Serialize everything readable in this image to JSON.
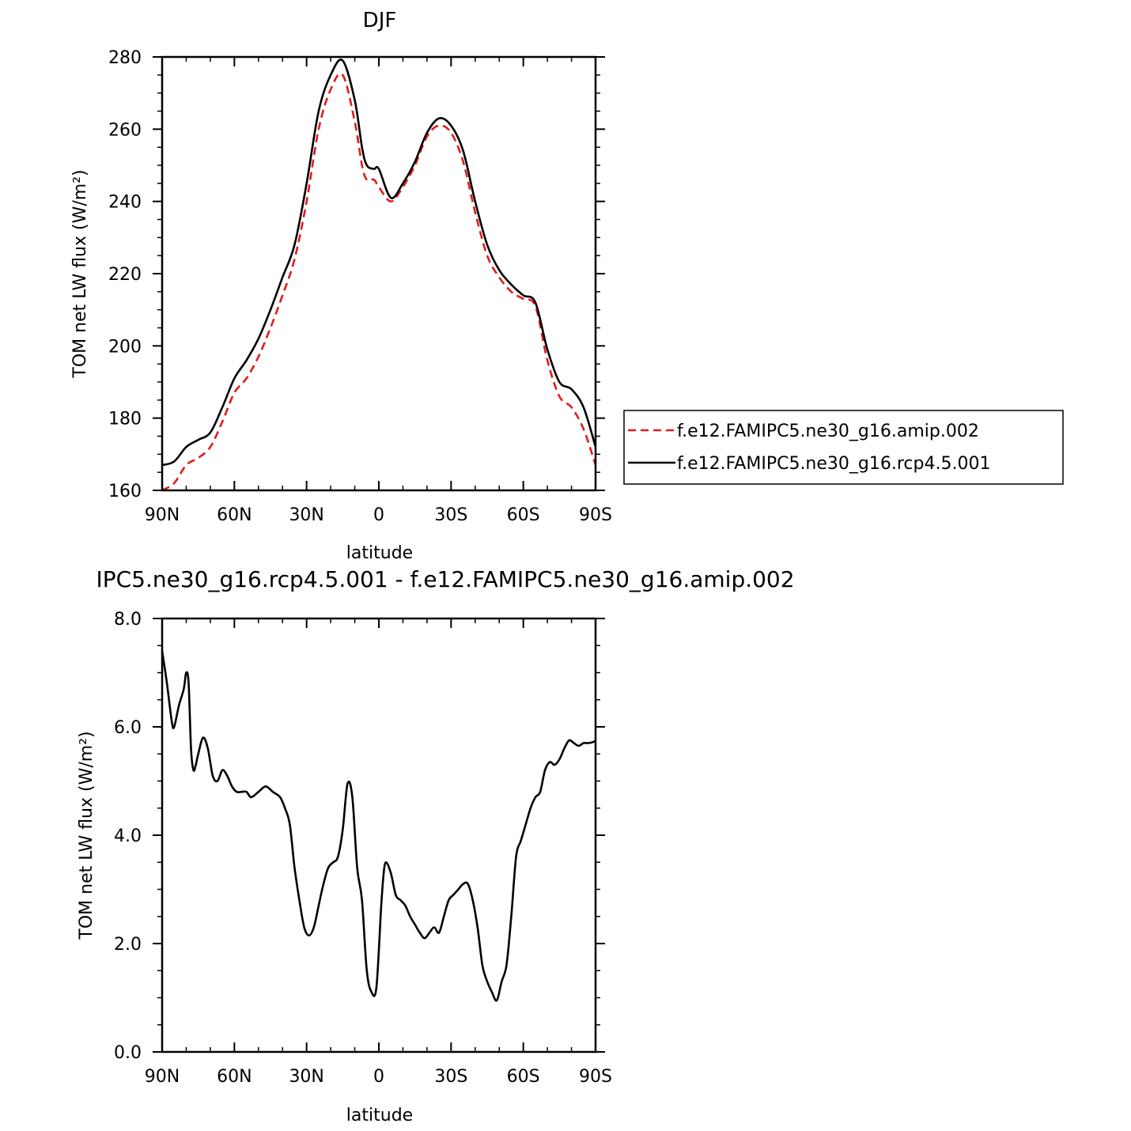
{
  "chart_data": [
    {
      "type": "line",
      "title": "DJF",
      "xlabel": "latitude",
      "ylabel": "TOM net LW flux (W/m²)",
      "xlim": [
        90,
        -90
      ],
      "ylim": [
        160,
        280
      ],
      "x_ticks": [
        90,
        60,
        30,
        0,
        -30,
        -60,
        -90
      ],
      "x_tick_labels": [
        "90N",
        "60N",
        "30N",
        "0",
        "30S",
        "60S",
        "90S"
      ],
      "y_ticks": [
        160,
        180,
        200,
        220,
        240,
        260,
        280
      ],
      "y_tick_labels": [
        "160",
        "180",
        "200",
        "220",
        "240",
        "260",
        "280"
      ],
      "legend_position": "right",
      "series": [
        {
          "name": "f.e12.FAMIPC5.ne30_g16.amip.002",
          "color": "#e31a1c",
          "dash": "dashed",
          "x": [
            90,
            85,
            80,
            75,
            70,
            65,
            60,
            55,
            50,
            45,
            40,
            35,
            30,
            25,
            20,
            15,
            10,
            7,
            5,
            2,
            0,
            -5,
            -10,
            -15,
            -20,
            -25,
            -30,
            -35,
            -40,
            -45,
            -50,
            -55,
            -60,
            -65,
            -70,
            -75,
            -80,
            -85,
            -90
          ],
          "y": [
            160,
            162,
            167,
            169,
            172,
            179,
            187,
            191,
            197,
            205,
            214,
            224,
            240,
            260,
            271,
            275,
            262,
            250,
            246,
            246,
            244,
            240,
            244,
            250,
            258,
            261,
            259,
            251,
            237,
            225,
            219,
            215,
            213,
            211,
            196,
            186,
            183,
            177,
            167
          ]
        },
        {
          "name": "f.e12.FAMIPC5.ne30_g16.rcp4.5.001",
          "color": "#000000",
          "dash": "solid",
          "x": [
            90,
            85,
            80,
            75,
            70,
            65,
            60,
            55,
            50,
            45,
            40,
            35,
            30,
            25,
            20,
            15,
            10,
            7,
            5,
            2,
            0,
            -5,
            -10,
            -15,
            -20,
            -25,
            -30,
            -35,
            -40,
            -45,
            -50,
            -55,
            -60,
            -65,
            -70,
            -75,
            -80,
            -85,
            -90
          ],
          "y": [
            167,
            168,
            172,
            174,
            176,
            183,
            191,
            196,
            202,
            210,
            219,
            228,
            245,
            265,
            275,
            279,
            268,
            255,
            250,
            249,
            249,
            241,
            245,
            251,
            259,
            263,
            261,
            254,
            240,
            228,
            221,
            217,
            214,
            212,
            199,
            190,
            188,
            183,
            172
          ]
        }
      ]
    },
    {
      "type": "line",
      "title": "IPC5.ne30_g16.rcp4.5.001 - f.e12.FAMIPC5.ne30_g16.amip.002",
      "xlabel": "latitude",
      "ylabel": "TOM net LW flux (W/m²)",
      "xlim": [
        90,
        -90
      ],
      "ylim": [
        0,
        8
      ],
      "x_ticks": [
        90,
        60,
        30,
        0,
        -30,
        -60,
        -90
      ],
      "x_tick_labels": [
        "90N",
        "60N",
        "30N",
        "0",
        "30S",
        "60S",
        "90S"
      ],
      "y_ticks": [
        0,
        2,
        4,
        6,
        8
      ],
      "y_tick_labels": [
        "0.0",
        "2.0",
        "4.0",
        "6.0",
        "8.0"
      ],
      "series": [
        {
          "color": "#000000",
          "dash": "solid",
          "x": [
            90,
            88,
            86,
            85,
            83,
            81,
            80,
            79,
            78,
            77,
            76,
            75,
            73,
            71,
            69,
            67,
            65,
            63,
            61,
            59,
            57,
            55,
            53,
            50,
            47,
            44,
            41,
            39,
            37,
            35,
            33,
            31,
            29,
            27,
            25,
            23,
            21,
            19,
            17,
            15,
            13,
            11,
            9,
            7,
            5,
            3,
            1,
            -1,
            -2,
            -3,
            -5,
            -7,
            -9,
            -11,
            -13,
            -15,
            -17,
            -19,
            -21,
            -23,
            -25,
            -27,
            -29,
            -31,
            -33,
            -35,
            -37,
            -39,
            -41,
            -43,
            -45,
            -47,
            -49,
            -51,
            -53,
            -55,
            -57,
            -59,
            -61,
            -63,
            -65,
            -67,
            -69,
            -71,
            -73,
            -75,
            -77,
            -79,
            -81,
            -83,
            -85,
            -87,
            -89,
            -90
          ],
          "y": [
            7.4,
            6.8,
            6.1,
            6.0,
            6.4,
            6.7,
            7.0,
            6.8,
            5.6,
            5.2,
            5.3,
            5.5,
            5.8,
            5.6,
            5.1,
            5.0,
            5.2,
            5.1,
            4.9,
            4.8,
            4.8,
            4.8,
            4.7,
            4.8,
            4.9,
            4.8,
            4.7,
            4.5,
            4.2,
            3.4,
            2.8,
            2.3,
            2.15,
            2.3,
            2.7,
            3.1,
            3.4,
            3.5,
            3.6,
            4.1,
            4.95,
            4.7,
            3.4,
            2.8,
            1.5,
            1.1,
            1.2,
            2.7,
            3.3,
            3.5,
            3.3,
            2.9,
            2.8,
            2.7,
            2.5,
            2.35,
            2.2,
            2.1,
            2.2,
            2.3,
            2.2,
            2.5,
            2.8,
            2.9,
            3.0,
            3.1,
            3.1,
            2.8,
            2.3,
            1.6,
            1.3,
            1.1,
            0.95,
            1.3,
            1.6,
            2.5,
            3.6,
            3.9,
            4.2,
            4.5,
            4.7,
            4.8,
            5.2,
            5.35,
            5.3,
            5.4,
            5.6,
            5.75,
            5.7,
            5.65,
            5.7,
            5.7,
            5.72,
            5.75
          ]
        }
      ]
    }
  ]
}
